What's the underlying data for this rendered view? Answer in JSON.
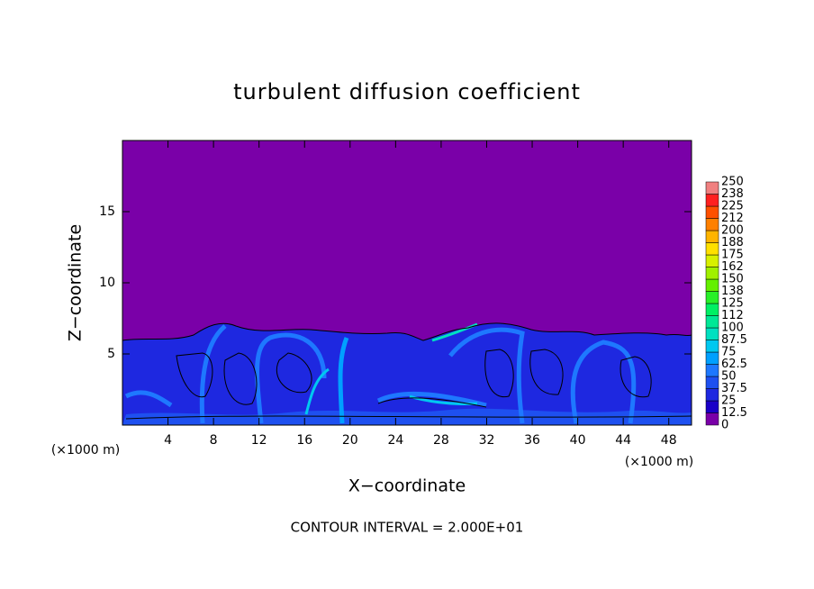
{
  "chart_data": {
    "type": "contour",
    "title": "turbulent diffusion coefficient",
    "x_label": "X−coordinate",
    "y_label": "Z−coordinate",
    "x_unit_label": "(×1000 m)",
    "footer": "CONTOUR INTERVAL = 2.000E+01",
    "xlim": [
      0,
      50
    ],
    "xticks": [
      4,
      8,
      12,
      16,
      20,
      24,
      28,
      32,
      36,
      40,
      44,
      48
    ],
    "ylim": [
      0,
      20
    ],
    "yticks": [
      5,
      10,
      15
    ],
    "colorbar": {
      "levels": [
        0,
        12.5,
        25,
        37.5,
        50,
        62.5,
        75,
        87.5,
        100,
        {
          "value": 112.5,
          "label": "112"
        },
        125,
        {
          "value": 137.5,
          "label": "138"
        },
        150,
        {
          "value": 162.5,
          "label": "162"
        },
        175,
        {
          "value": 187.5,
          "label": "188"
        },
        200,
        {
          "value": 212.5,
          "label": "212"
        },
        225,
        {
          "value": 237.5,
          "label": "238"
        },
        250
      ],
      "colors": [
        "#7a00a8",
        "#1a00c8",
        "#1e28e0",
        "#1e50f0",
        "#1e78ff",
        "#00a0ff",
        "#00c8f0",
        "#00e0c0",
        "#00e896",
        "#00f064",
        "#28f028",
        "#64f000",
        "#a0f000",
        "#d8f000",
        "#ffe000",
        "#ffb400",
        "#ff8000",
        "#ff5000",
        "#ff2020",
        "#f08080"
      ]
    }
  }
}
